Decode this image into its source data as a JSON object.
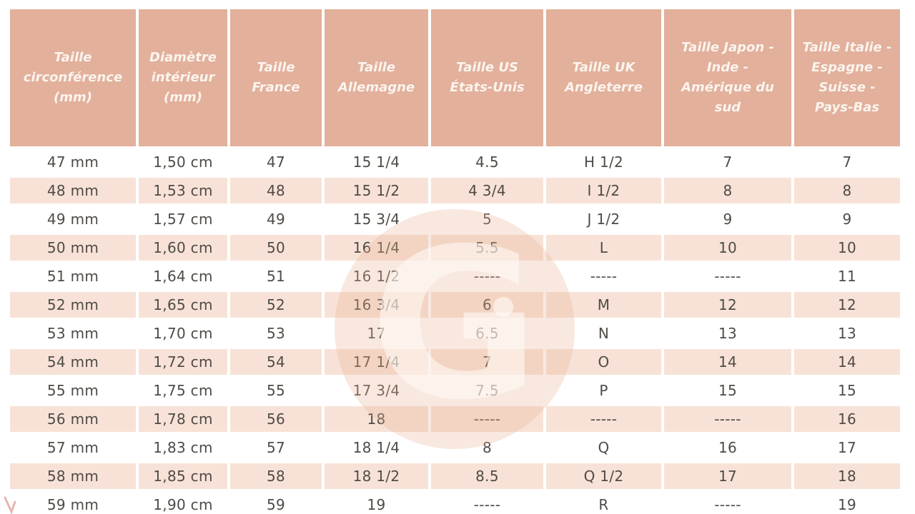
{
  "chart_data": {
    "type": "table",
    "columns": [
      "Taille circonférence (mm)",
      "Diamètre intérieur (mm)",
      "Taille France",
      "Taille Allemagne",
      "Taille US États-Unis",
      "Taille UK Angleterre",
      "Taille Japon - Inde - Amérique du sud",
      "Taille Italie - Espagne - Suisse - Pays-Bas"
    ],
    "rows": [
      [
        "47 mm",
        "1,50 cm",
        "47",
        "15 1/4",
        "4.5",
        "H 1/2",
        "7",
        "7"
      ],
      [
        "48 mm",
        "1,53 cm",
        "48",
        "15 1/2",
        "4 3/4",
        "I 1/2",
        "8",
        "8"
      ],
      [
        "49 mm",
        "1,57 cm",
        "49",
        "15 3/4",
        "5",
        "J 1/2",
        "9",
        "9"
      ],
      [
        "50 mm",
        "1,60 cm",
        "50",
        "16 1/4",
        "5.5",
        "L",
        "10",
        "10"
      ],
      [
        "51 mm",
        "1,64 cm",
        "51",
        "16 1/2",
        "-----",
        "-----",
        "-----",
        "11"
      ],
      [
        "52 mm",
        "1,65 cm",
        "52",
        "16 3/4",
        "6",
        "M",
        "12",
        "12"
      ],
      [
        "53 mm",
        "1,70 cm",
        "53",
        "17",
        "6.5",
        "N",
        "13",
        "13"
      ],
      [
        "54 mm",
        "1,72 cm",
        "54",
        "17 1/4",
        "7",
        "O",
        "14",
        "14"
      ],
      [
        "55 mm",
        "1,75 cm",
        "55",
        "17 3/4",
        "7.5",
        "P",
        "15",
        "15"
      ],
      [
        "56 mm",
        "1,78 cm",
        "56",
        "18",
        "-----",
        "-----",
        "-----",
        "16"
      ],
      [
        "57 mm",
        "1,83 cm",
        "57",
        "18 1/4",
        "8",
        "Q",
        "16",
        "17"
      ],
      [
        "58 mm",
        "1,85 cm",
        "58",
        "18 1/2",
        "8.5",
        "Q 1/2",
        "17",
        "18"
      ],
      [
        "59 mm",
        "1,90 cm",
        "59",
        "19",
        "-----",
        "R",
        "-----",
        "19"
      ]
    ],
    "layout_hints": {
      "header_rows": 1,
      "alternating_row_shading": "even data rows white, odd data rows pink",
      "grid": "white gutters between cells"
    }
  },
  "watermark": {
    "letter": "G"
  },
  "colors": {
    "header_bg": "#e2b09b",
    "header_text": "#fbf4ee",
    "row_alt_bg": "#f8e2d7",
    "row_bg": "#ffffff",
    "body_text": "#4f4b46",
    "watermark_disc": "#e8b494",
    "corner_mark": "#dd968f"
  }
}
